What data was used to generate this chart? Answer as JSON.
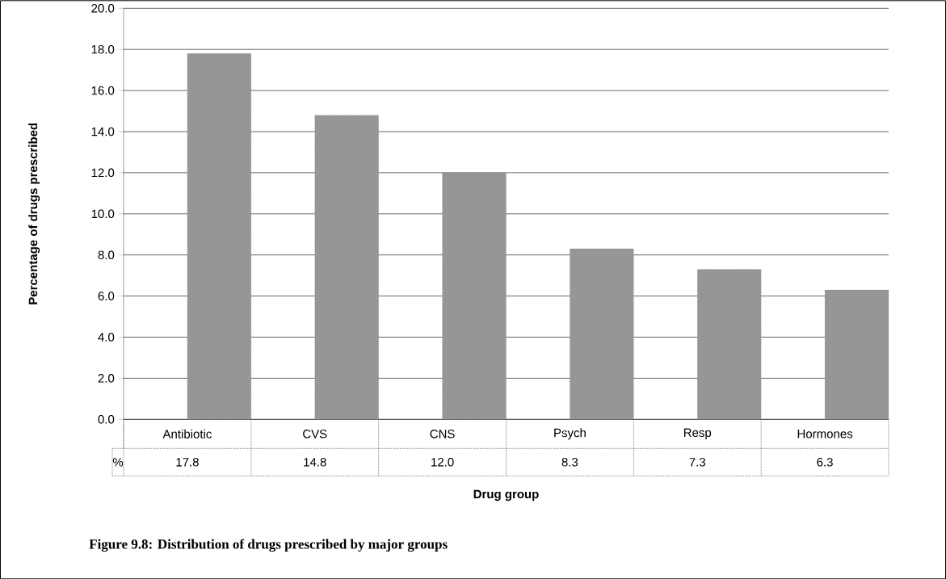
{
  "chart_data": {
    "type": "bar",
    "title": "Figure 9.8: Distribution of drugs prescribed by major groups",
    "xlabel": "Drug group",
    "ylabel": "Percentage of drugs prescribed",
    "categories": [
      "Antibiotic",
      "CVS",
      "CNS",
      "Psych",
      "Resp",
      "Hormones"
    ],
    "series": [
      {
        "name": "%",
        "color": "#969696",
        "values": [
          17.8,
          14.8,
          12.0,
          8.3,
          7.3,
          6.3
        ],
        "value_labels": [
          "17.8",
          "14.8",
          "12.0",
          "8.3",
          "7.3",
          "6.3"
        ]
      }
    ],
    "ylim": [
      0,
      20
    ],
    "yticks": [
      {
        "value": 0,
        "label": "0.0"
      },
      {
        "value": 2,
        "label": "2.0"
      },
      {
        "value": 4,
        "label": "4.0"
      },
      {
        "value": 6,
        "label": "6.0"
      },
      {
        "value": 8,
        "label": "8.0"
      },
      {
        "value": 10,
        "label": "10.0"
      },
      {
        "value": 12,
        "label": "12.0"
      },
      {
        "value": 14,
        "label": "14.0"
      },
      {
        "value": 16,
        "label": "16.0"
      },
      {
        "value": 18,
        "label": "18.0"
      },
      {
        "value": 20,
        "label": "20.0"
      }
    ],
    "grid": "y"
  }
}
